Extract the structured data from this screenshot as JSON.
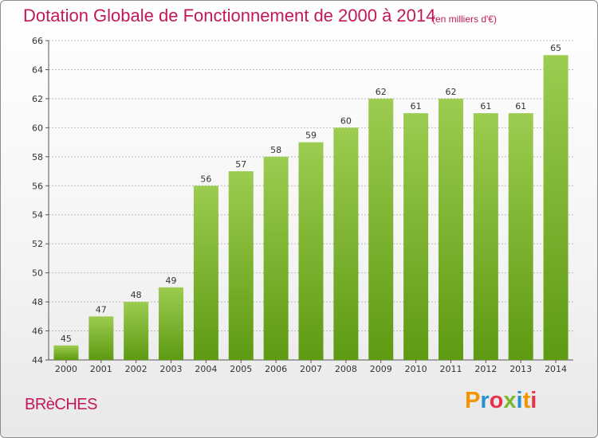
{
  "header": {
    "title": "Dotation Globale de Fonctionnement de 2000 à 2014",
    "unit": "(en milliers d'€)"
  },
  "footer": {
    "commune": "BRèCHES",
    "logo_text": "Proxiti"
  },
  "colors": {
    "title": "#c2185b",
    "bar_light": "#9ccc50",
    "bar_dark": "#5e9a12",
    "grid": "#bbbbbb",
    "logo": [
      "#f29400",
      "#2a8fd1",
      "#e8334a",
      "#7cb82f",
      "#2a8fd1",
      "#f29400",
      "#e8334a"
    ]
  },
  "chart_data": {
    "type": "bar",
    "title": "Dotation Globale de Fonctionnement de 2000 à 2014",
    "subtitle": "(en milliers d'€)",
    "xlabel": "",
    "ylabel": "",
    "categories": [
      "2000",
      "2001",
      "2002",
      "2003",
      "2004",
      "2005",
      "2006",
      "2007",
      "2008",
      "2009",
      "2010",
      "2011",
      "2012",
      "2013",
      "2014"
    ],
    "values": [
      45,
      47,
      48,
      49,
      56,
      57,
      58,
      59,
      60,
      62,
      61,
      62,
      61,
      61,
      65
    ],
    "ylim": [
      44,
      66
    ],
    "yticks": [
      44,
      46,
      48,
      50,
      52,
      54,
      56,
      58,
      60,
      62,
      64,
      66
    ],
    "grid": true,
    "legend": "none"
  }
}
